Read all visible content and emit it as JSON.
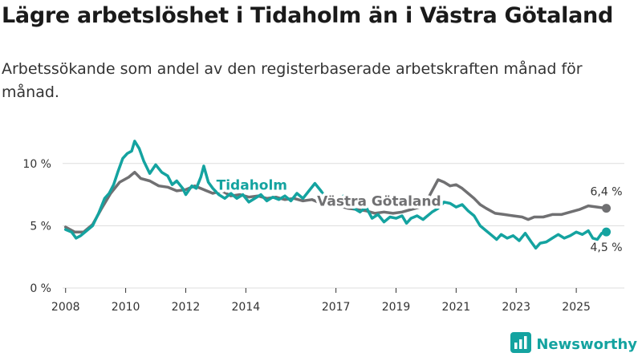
{
  "header": {
    "title": "Lägre arbetslöshet i Tidaholm än i Västra Götaland",
    "subtitle": "Arbetssökande som andel av den registerbaserade arbetskraften månad för månad."
  },
  "brand": {
    "name": "Newsworthy",
    "icon": "bar-chart-logo-icon",
    "color": "#14a3a0"
  },
  "colors": {
    "tidaholm": "#14a3a0",
    "vastra": "#707072",
    "grid": "#dddddd"
  },
  "chart_data": {
    "type": "line",
    "title": "Lägre arbetslöshet i Tidaholm än i Västra Götaland",
    "subtitle": "Arbetssökande som andel av den registerbaserade arbetskraften månad för månad.",
    "xlabel": "",
    "ylabel": "",
    "xlim": [
      2007.9,
      2026.6
    ],
    "ylim": [
      0,
      12.5
    ],
    "x_ticks": [
      2008,
      2010,
      2012,
      2014,
      2017,
      2019,
      2021,
      2023,
      2025
    ],
    "x_tick_labels": [
      "2008",
      "2010",
      "2012",
      "2014",
      "2017",
      "2019",
      "2021",
      "2023",
      "2025"
    ],
    "y_ticks": [
      0,
      5,
      10
    ],
    "y_tick_labels": [
      "0 %",
      "5 %",
      "10 %"
    ],
    "grid": true,
    "series": [
      {
        "name": "Västra Götaland",
        "color": "#707072",
        "end_label": "6,4 %",
        "points": [
          [
            2008.0,
            4.9
          ],
          [
            2008.3,
            4.5
          ],
          [
            2008.6,
            4.5
          ],
          [
            2008.9,
            5.1
          ],
          [
            2009.2,
            6.4
          ],
          [
            2009.5,
            7.6
          ],
          [
            2009.8,
            8.5
          ],
          [
            2010.1,
            8.9
          ],
          [
            2010.3,
            9.3
          ],
          [
            2010.5,
            8.8
          ],
          [
            2010.8,
            8.6
          ],
          [
            2011.1,
            8.2
          ],
          [
            2011.4,
            8.1
          ],
          [
            2011.7,
            7.8
          ],
          [
            2012.0,
            7.9
          ],
          [
            2012.3,
            8.2
          ],
          [
            2012.6,
            7.9
          ],
          [
            2012.9,
            7.6
          ],
          [
            2013.2,
            7.8
          ],
          [
            2013.5,
            7.4
          ],
          [
            2013.8,
            7.5
          ],
          [
            2014.1,
            7.3
          ],
          [
            2014.4,
            7.4
          ],
          [
            2014.7,
            7.2
          ],
          [
            2015.0,
            7.3
          ],
          [
            2015.3,
            7.1
          ],
          [
            2015.6,
            7.2
          ],
          [
            2015.9,
            7.0
          ],
          [
            2016.2,
            7.1
          ],
          [
            2016.5,
            6.8
          ],
          [
            2016.8,
            6.8
          ],
          [
            2017.1,
            6.6
          ],
          [
            2017.4,
            6.4
          ],
          [
            2017.7,
            6.3
          ],
          [
            2018.0,
            6.2
          ],
          [
            2018.3,
            6.0
          ],
          [
            2018.6,
            6.1
          ],
          [
            2018.9,
            6.0
          ],
          [
            2019.2,
            6.1
          ],
          [
            2019.5,
            6.3
          ],
          [
            2019.8,
            6.5
          ],
          [
            2020.0,
            6.9
          ],
          [
            2020.2,
            7.8
          ],
          [
            2020.4,
            8.7
          ],
          [
            2020.6,
            8.5
          ],
          [
            2020.8,
            8.2
          ],
          [
            2021.0,
            8.3
          ],
          [
            2021.2,
            8.0
          ],
          [
            2021.4,
            7.6
          ],
          [
            2021.6,
            7.2
          ],
          [
            2021.8,
            6.7
          ],
          [
            2022.0,
            6.4
          ],
          [
            2022.3,
            6.0
          ],
          [
            2022.6,
            5.9
          ],
          [
            2022.9,
            5.8
          ],
          [
            2023.2,
            5.7
          ],
          [
            2023.4,
            5.5
          ],
          [
            2023.6,
            5.7
          ],
          [
            2023.9,
            5.7
          ],
          [
            2024.2,
            5.9
          ],
          [
            2024.5,
            5.9
          ],
          [
            2024.8,
            6.1
          ],
          [
            2025.1,
            6.3
          ],
          [
            2025.4,
            6.6
          ],
          [
            2025.7,
            6.5
          ],
          [
            2026.0,
            6.4
          ]
        ]
      },
      {
        "name": "Tidaholm",
        "color": "#14a3a0",
        "end_label": "4,5 %",
        "points": [
          [
            2008.0,
            4.7
          ],
          [
            2008.2,
            4.5
          ],
          [
            2008.35,
            4.0
          ],
          [
            2008.5,
            4.2
          ],
          [
            2008.7,
            4.6
          ],
          [
            2008.9,
            5.0
          ],
          [
            2009.1,
            6.0
          ],
          [
            2009.3,
            7.2
          ],
          [
            2009.45,
            7.6
          ],
          [
            2009.6,
            8.3
          ],
          [
            2009.75,
            9.4
          ],
          [
            2009.9,
            10.4
          ],
          [
            2010.05,
            10.8
          ],
          [
            2010.2,
            11.0
          ],
          [
            2010.3,
            11.8
          ],
          [
            2010.45,
            11.2
          ],
          [
            2010.6,
            10.2
          ],
          [
            2010.8,
            9.2
          ],
          [
            2011.0,
            9.9
          ],
          [
            2011.2,
            9.3
          ],
          [
            2011.4,
            9.0
          ],
          [
            2011.55,
            8.3
          ],
          [
            2011.7,
            8.6
          ],
          [
            2011.9,
            8.0
          ],
          [
            2012.0,
            7.5
          ],
          [
            2012.2,
            8.2
          ],
          [
            2012.35,
            8.0
          ],
          [
            2012.5,
            8.9
          ],
          [
            2012.6,
            9.8
          ],
          [
            2012.75,
            8.5
          ],
          [
            2012.9,
            8.0
          ],
          [
            2013.1,
            7.5
          ],
          [
            2013.3,
            7.2
          ],
          [
            2013.5,
            7.6
          ],
          [
            2013.7,
            7.2
          ],
          [
            2013.9,
            7.5
          ],
          [
            2014.1,
            6.9
          ],
          [
            2014.3,
            7.2
          ],
          [
            2014.5,
            7.5
          ],
          [
            2014.7,
            7.0
          ],
          [
            2014.9,
            7.3
          ],
          [
            2015.1,
            7.1
          ],
          [
            2015.3,
            7.4
          ],
          [
            2015.5,
            7.0
          ],
          [
            2015.7,
            7.6
          ],
          [
            2015.9,
            7.2
          ],
          [
            2016.1,
            7.8
          ],
          [
            2016.3,
            8.4
          ],
          [
            2016.5,
            7.8
          ],
          [
            2016.7,
            7.1
          ],
          [
            2016.9,
            6.6
          ],
          [
            2017.1,
            7.0
          ],
          [
            2017.25,
            7.4
          ],
          [
            2017.4,
            6.8
          ],
          [
            2017.6,
            6.4
          ],
          [
            2017.8,
            6.1
          ],
          [
            2018.0,
            6.5
          ],
          [
            2018.2,
            5.6
          ],
          [
            2018.4,
            5.9
          ],
          [
            2018.6,
            5.3
          ],
          [
            2018.8,
            5.7
          ],
          [
            2019.0,
            5.6
          ],
          [
            2019.2,
            5.8
          ],
          [
            2019.35,
            5.2
          ],
          [
            2019.5,
            5.6
          ],
          [
            2019.7,
            5.8
          ],
          [
            2019.9,
            5.5
          ],
          [
            2020.0,
            5.7
          ],
          [
            2020.2,
            6.1
          ],
          [
            2020.4,
            6.4
          ],
          [
            2020.6,
            6.9
          ],
          [
            2020.8,
            6.8
          ],
          [
            2021.0,
            6.5
          ],
          [
            2021.2,
            6.7
          ],
          [
            2021.4,
            6.2
          ],
          [
            2021.6,
            5.8
          ],
          [
            2021.8,
            5.0
          ],
          [
            2022.0,
            4.6
          ],
          [
            2022.2,
            4.2
          ],
          [
            2022.35,
            3.9
          ],
          [
            2022.5,
            4.3
          ],
          [
            2022.7,
            4.0
          ],
          [
            2022.9,
            4.2
          ],
          [
            2023.1,
            3.8
          ],
          [
            2023.3,
            4.4
          ],
          [
            2023.5,
            3.7
          ],
          [
            2023.65,
            3.2
          ],
          [
            2023.8,
            3.6
          ],
          [
            2024.0,
            3.7
          ],
          [
            2024.2,
            4.0
          ],
          [
            2024.4,
            4.3
          ],
          [
            2024.6,
            4.0
          ],
          [
            2024.8,
            4.2
          ],
          [
            2025.0,
            4.5
          ],
          [
            2025.2,
            4.3
          ],
          [
            2025.4,
            4.6
          ],
          [
            2025.55,
            4.0
          ],
          [
            2025.7,
            3.9
          ],
          [
            2025.85,
            4.4
          ],
          [
            2026.0,
            4.5
          ]
        ]
      }
    ],
    "annotations": [
      {
        "text": "Tidaholm",
        "series": "Tidaholm"
      },
      {
        "text": "Västra Götaland",
        "series": "Västra Götaland"
      }
    ]
  }
}
